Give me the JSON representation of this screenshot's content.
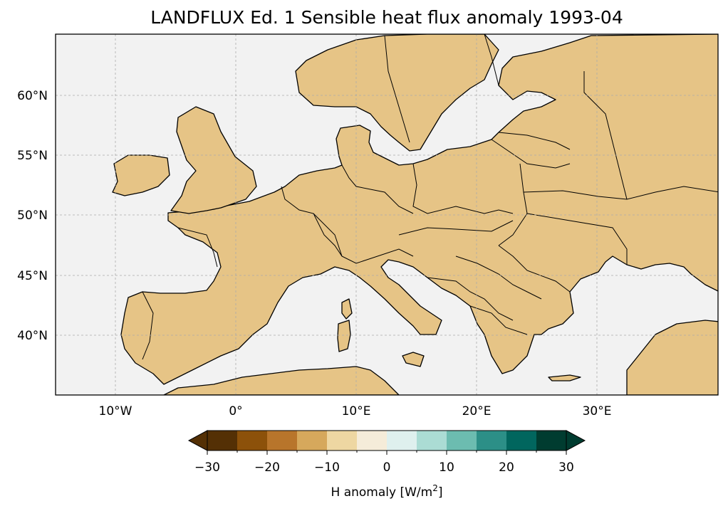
{
  "title": "LANDFLUX Ed. 1 Sensible heat flux anomaly 1993-04",
  "map": {
    "projection": "PlateCarree",
    "extent_lon": [
      -15,
      40
    ],
    "extent_lat": [
      35,
      65
    ],
    "ocean_color": "#f2f2f2",
    "coastline_color": "#000000",
    "gridlines": true,
    "lon_ticks": [
      -10,
      0,
      10,
      20,
      30
    ],
    "lon_tick_labels": [
      "10°W",
      "0°",
      "10°E",
      "20°E",
      "30°E"
    ],
    "lat_ticks": [
      40,
      45,
      50,
      55,
      60
    ],
    "lat_tick_labels": [
      "40°N",
      "45°N",
      "50°N",
      "55°N",
      "60°N"
    ]
  },
  "colorbar": {
    "label_prefix": "H anomaly [W/m",
    "label_sup": "2",
    "label_suffix": "]",
    "extend": "both",
    "ticks": [
      -30,
      -20,
      -10,
      0,
      10,
      20,
      30
    ],
    "tick_labels": [
      "−30",
      "−20",
      "−10",
      "0",
      "10",
      "20",
      "30"
    ],
    "levels": [
      -30,
      -25,
      -20,
      -15,
      -10,
      -5,
      0,
      5,
      10,
      15,
      20,
      25,
      30
    ],
    "colors": [
      "#543005",
      "#8c510a",
      "#b8752b",
      "#d6a85c",
      "#eed7a2",
      "#f5ecd9",
      "#dff0ee",
      "#abdcd4",
      "#6cbcb0",
      "#2c8f87",
      "#01665e",
      "#003c30"
    ],
    "under_color": "#543005",
    "over_color": "#003c30"
  }
}
